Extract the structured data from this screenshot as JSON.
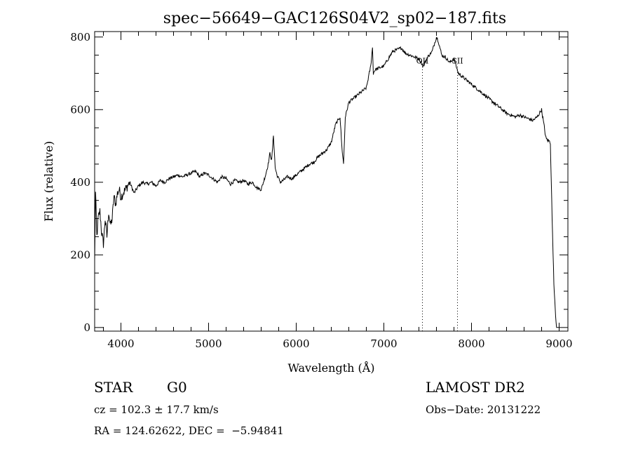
{
  "chart_data": {
    "type": "line",
    "title": "spec−56649−GAC126S04V2_sp02−187.fits",
    "xlabel": "Wavelength (Å)",
    "ylabel": "Flux (relative)",
    "xlim": [
      3700,
      9100
    ],
    "ylim": [
      -10,
      815
    ],
    "xticks": [
      4000,
      5000,
      6000,
      7000,
      8000,
      9000
    ],
    "yticks": [
      0,
      200,
      400,
      600,
      800
    ],
    "line_markers": [
      {
        "label": "OII",
        "x": 7440
      },
      {
        "label": "SII",
        "x": 7840
      }
    ],
    "series": [
      {
        "color": "#000000",
        "x": [
          3700,
          3710,
          3725,
          3740,
          3760,
          3780,
          3800,
          3820,
          3840,
          3860,
          3880,
          3900,
          3920,
          3940,
          3960,
          3980,
          4000,
          4050,
          4100,
          4150,
          4200,
          4250,
          4300,
          4350,
          4400,
          4450,
          4500,
          4550,
          4600,
          4650,
          4700,
          4750,
          4800,
          4850,
          4900,
          4950,
          5000,
          5050,
          5100,
          5150,
          5200,
          5250,
          5300,
          5350,
          5400,
          5450,
          5500,
          5550,
          5600,
          5650,
          5680,
          5700,
          5720,
          5740,
          5760,
          5780,
          5800,
          5820,
          5850,
          5900,
          5950,
          6000,
          6050,
          6100,
          6150,
          6200,
          6250,
          6300,
          6350,
          6400,
          6450,
          6500,
          6520,
          6540,
          6560,
          6580,
          6600,
          6650,
          6700,
          6750,
          6800,
          6850,
          6870,
          6880,
          6900,
          6950,
          7000,
          7050,
          7100,
          7150,
          7200,
          7250,
          7300,
          7350,
          7400,
          7450,
          7500,
          7550,
          7600,
          7620,
          7640,
          7660,
          7700,
          7750,
          7800,
          7850,
          7900,
          7950,
          8000,
          8050,
          8100,
          8150,
          8200,
          8250,
          8300,
          8350,
          8400,
          8450,
          8500,
          8550,
          8600,
          8650,
          8700,
          8750,
          8800,
          8850,
          8900,
          8920,
          8940,
          8960,
          8970,
          8980,
          8990,
          9000
        ],
        "y": [
          180,
          370,
          250,
          300,
          320,
          260,
          230,
          300,
          250,
          320,
          280,
          300,
          360,
          340,
          370,
          380,
          360,
          380,
          400,
          370,
          390,
          400,
          395,
          400,
          390,
          405,
          400,
          410,
          415,
          420,
          415,
          420,
          425,
          430,
          415,
          425,
          420,
          410,
          400,
          415,
          410,
          395,
          405,
          400,
          405,
          395,
          400,
          385,
          380,
          420,
          450,
          480,
          460,
          530,
          440,
          420,
          410,
          400,
          405,
          415,
          410,
          420,
          430,
          440,
          450,
          455,
          470,
          480,
          490,
          510,
          560,
          580,
          500,
          450,
          580,
          600,
          620,
          630,
          640,
          650,
          660,
          720,
          770,
          700,
          710,
          715,
          720,
          740,
          760,
          765,
          770,
          755,
          750,
          745,
          740,
          720,
          745,
          760,
          800,
          790,
          770,
          750,
          745,
          730,
          740,
          700,
          690,
          680,
          670,
          660,
          650,
          640,
          630,
          620,
          610,
          600,
          590,
          585,
          580,
          585,
          580,
          575,
          570,
          580,
          600,
          520,
          510,
          300,
          120,
          30,
          0,
          0,
          0,
          0
        ]
      }
    ]
  },
  "footer": {
    "class_label": "STAR",
    "subclass": "G0",
    "cz": "cz = 102.3 ± 17.7 km/s",
    "coords": "RA = 124.62622, DEC =  −5.94841",
    "survey": "LAMOST DR2",
    "obs_date": "Obs−Date: 20131222"
  }
}
